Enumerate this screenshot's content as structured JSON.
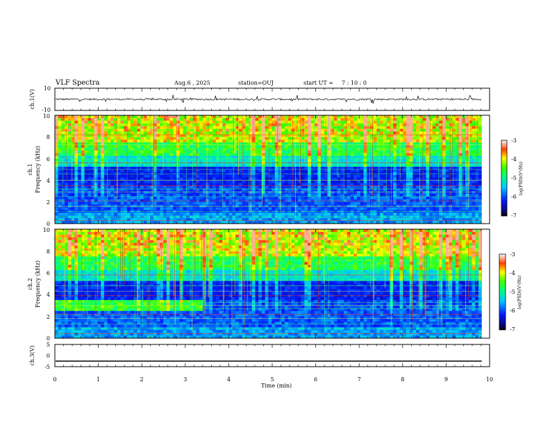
{
  "header": {
    "title": "VLF Spectra",
    "date": "Aug.6  , 2025",
    "station": "station=OUJ",
    "start_label": "start  UT  =",
    "start_time": "7 : 10 : 0"
  },
  "chart_data": [
    {
      "id": "ch1-waveform",
      "type": "line",
      "ylabel": "ch.1(V)",
      "ylim": [
        -10,
        10
      ],
      "yticks": [
        "10",
        "-10"
      ],
      "baseline": 0,
      "noise_amplitude": 1
    },
    {
      "id": "ch1-spectrogram",
      "type": "heatmap",
      "ylabel": "Frequency  (kHz)",
      "channel_label": "ch.1",
      "ylim": [
        0,
        10
      ],
      "yticks": [
        "0",
        "2",
        "4",
        "6",
        "8",
        "10"
      ],
      "colorbar": {
        "label": "log(PSD)(V²/Hz)",
        "range": [
          -7,
          -3
        ],
        "ticks": [
          "-3",
          "-4",
          "-5",
          "-6",
          "-7"
        ]
      }
    },
    {
      "id": "ch2-spectrogram",
      "type": "heatmap",
      "ylabel": "Frequency  (kHz)",
      "channel_label": "ch.2",
      "ylim": [
        0,
        10
      ],
      "yticks": [
        "0",
        "2",
        "4",
        "6",
        "8",
        "10"
      ],
      "colorbar": {
        "label": "log(PSD)(V²/Hz)",
        "range": [
          -7,
          -3
        ],
        "ticks": [
          "-3",
          "-4",
          "-5",
          "-6",
          "-7"
        ]
      }
    },
    {
      "id": "ch3-waveform",
      "type": "line",
      "ylabel": "ch.3(V)",
      "ylim": [
        -5,
        5
      ],
      "yticks": [
        "5",
        "0",
        "-5"
      ],
      "baseline": -2.5,
      "noise_amplitude": 0
    }
  ],
  "xaxis": {
    "label": "Time  (min)",
    "range": [
      0,
      10
    ],
    "data_end": 9.82,
    "ticks": [
      "0",
      "1",
      "2",
      "3",
      "4",
      "5",
      "6",
      "7",
      "8",
      "9",
      "10"
    ]
  }
}
